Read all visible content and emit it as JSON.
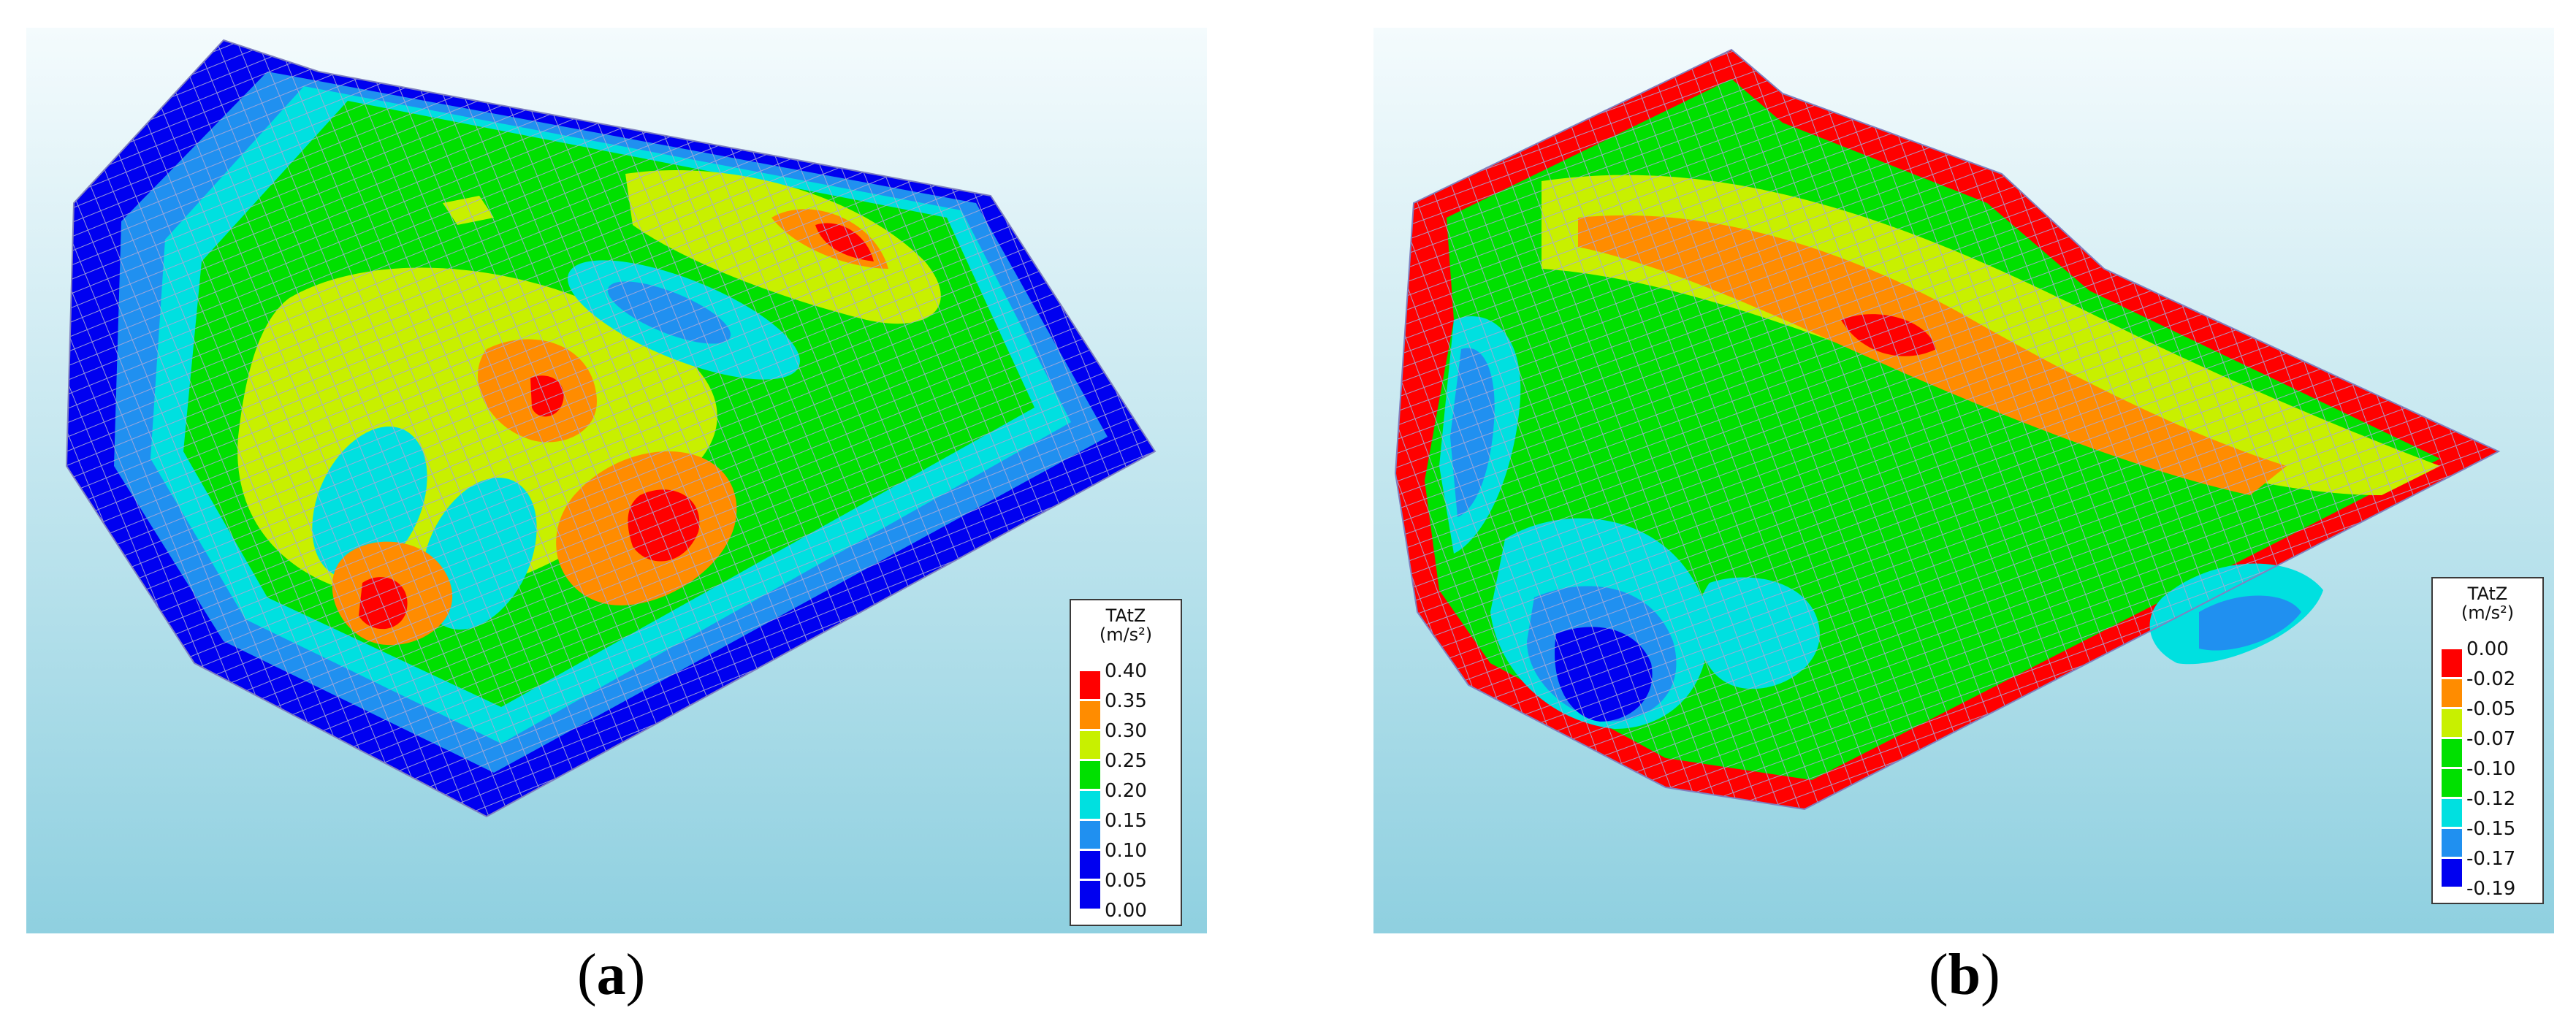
{
  "panels": [
    {
      "caption_open": "(",
      "caption_letter": "a",
      "caption_close": ")",
      "legend": {
        "title": "TAtZ",
        "unit": "(m/s²)",
        "ticks": [
          "0.40",
          "0.35",
          "0.30",
          "0.25",
          "0.20",
          "0.15",
          "0.10",
          "0.05",
          "0.00"
        ],
        "colors": [
          "#ff0000",
          "#ff8c00",
          "#c8f000",
          "#00e000",
          "#00e0e0",
          "#2090f0",
          "#0000f0",
          "#0000f0"
        ]
      }
    },
    {
      "caption_open": "(",
      "caption_letter": "b",
      "caption_close": ")",
      "legend": {
        "title": "TAtZ",
        "unit": "(m/s²)",
        "ticks": [
          "0.00",
          "-0.02",
          "-0.05",
          "-0.07",
          "-0.10",
          "-0.12",
          "-0.15",
          "-0.17",
          "-0.19"
        ],
        "colors": [
          "#ff0000",
          "#ff8c00",
          "#c8f000",
          "#00e000",
          "#00e000",
          "#00e0e0",
          "#2090f0",
          "#0000f0"
        ]
      }
    }
  ],
  "palette": {
    "red": "#ff0000",
    "orange": "#ff8c00",
    "yellow": "#c8f000",
    "green": "#00e000",
    "cyan": "#00e0e0",
    "lightblue": "#2090f0",
    "blue": "#0000f0",
    "mesh": "#a8a8d8",
    "bg_top": "#f4fbfd",
    "bg_bottom": "#8fd0e0"
  }
}
